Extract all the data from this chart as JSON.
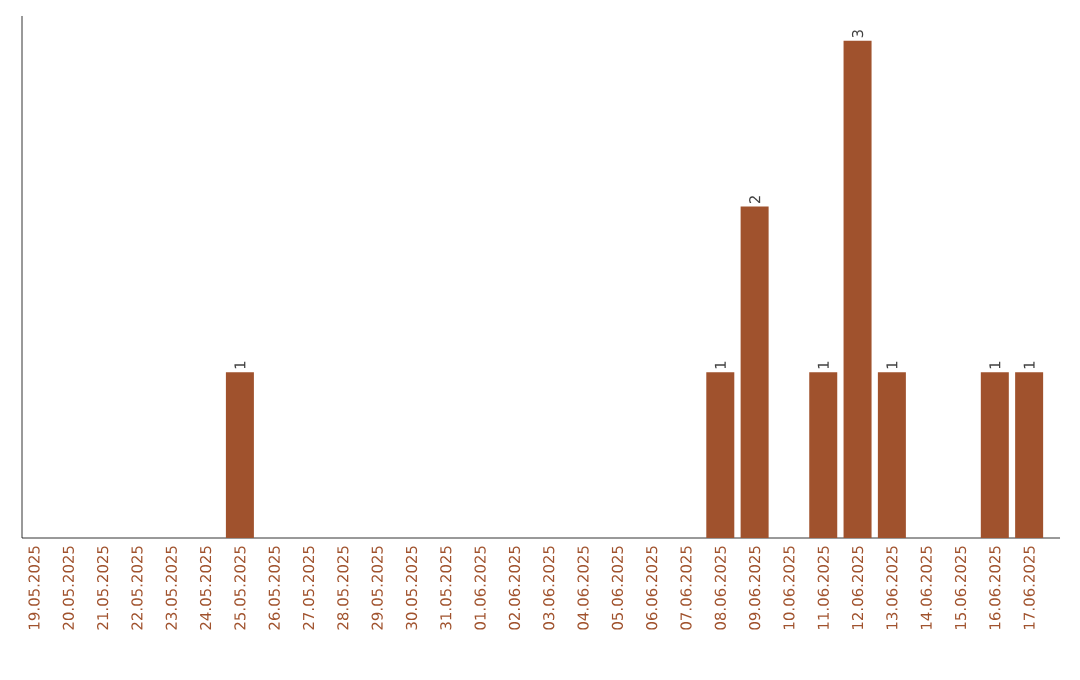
{
  "chart_data": {
    "type": "bar",
    "categories": [
      "19.05.2025",
      "20.05.2025",
      "21.05.2025",
      "22.05.2025",
      "23.05.2025",
      "24.05.2025",
      "25.05.2025",
      "26.05.2025",
      "27.05.2025",
      "28.05.2025",
      "29.05.2025",
      "30.05.2025",
      "31.05.2025",
      "01.06.2025",
      "02.06.2025",
      "03.06.2025",
      "04.06.2025",
      "05.06.2025",
      "06.06.2025",
      "07.06.2025",
      "08.06.2025",
      "09.06.2025",
      "10.06.2025",
      "11.06.2025",
      "12.06.2025",
      "13.06.2025",
      "14.06.2025",
      "15.06.2025",
      "16.06.2025",
      "17.06.2025"
    ],
    "values": [
      0,
      0,
      0,
      0,
      0,
      0,
      1,
      0,
      0,
      0,
      0,
      0,
      0,
      0,
      0,
      0,
      0,
      0,
      0,
      0,
      1,
      2,
      0,
      1,
      3,
      1,
      0,
      0,
      1,
      1
    ],
    "value_labels": [
      null,
      null,
      null,
      null,
      null,
      null,
      "1",
      null,
      null,
      null,
      null,
      null,
      null,
      null,
      null,
      null,
      null,
      null,
      null,
      null,
      "1",
      "2",
      null,
      "1",
      "3",
      "1",
      null,
      null,
      "1",
      "1"
    ],
    "color": "#a0522d",
    "tick_labels": "x"
  }
}
